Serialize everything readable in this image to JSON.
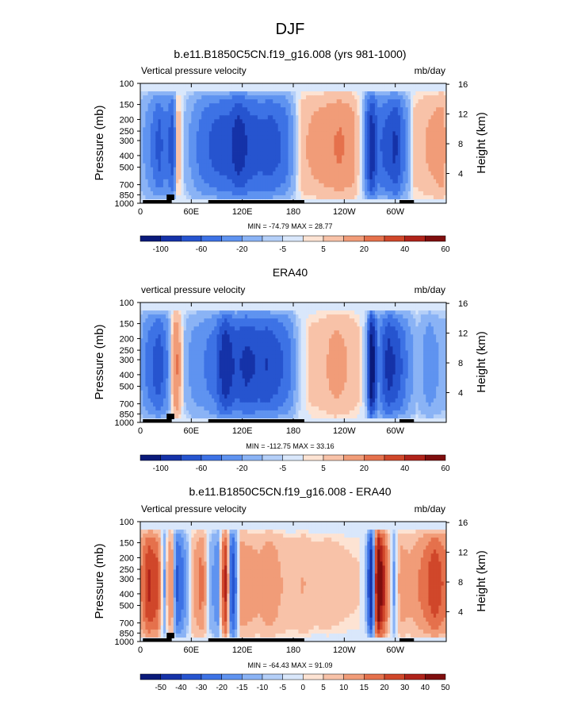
{
  "page": {
    "title": "DJF"
  },
  "colors": {
    "scale": [
      "#0a1a7a",
      "#1532a8",
      "#2654cf",
      "#3d72e5",
      "#5f93f0",
      "#8ab3f5",
      "#b4cff8",
      "#d9e7fb",
      "#fde3d3",
      "#f8c2a8",
      "#f19c78",
      "#e5714c",
      "#d0472a",
      "#b0231a",
      "#7f0e0e"
    ],
    "land_bar": "#000000"
  },
  "chart_data": [
    {
      "type": "heatmap",
      "title": "b.e11.B1850C5CN.f19_g16.008 (yrs 981-1000)",
      "left_label": "Vertical pressure velocity",
      "right_label": "mb/day",
      "ylabel": "Pressure (mb)",
      "y2label": "Height (km)",
      "x_ticks": [
        "0",
        "60E",
        "120E",
        "180",
        "120W",
        "60W"
      ],
      "y_ticks": [
        "100",
        "150",
        "200",
        "250",
        "300",
        "400",
        "500",
        "700",
        "850",
        "1000"
      ],
      "y2_ticks": [
        "16",
        "12",
        "8",
        "4"
      ],
      "stats": "MIN = -74.79  MAX = 28.77",
      "colorbar_labels": [
        "-100",
        "-60",
        "-20",
        "-5",
        "5",
        "20",
        "40",
        "60"
      ],
      "profile": [
        {
          "lon": 0,
          "v": -6
        },
        {
          "lon": 12,
          "v": -20
        },
        {
          "lon": 22,
          "v": -40
        },
        {
          "lon": 30,
          "v": -25
        },
        {
          "lon": 38,
          "v": -45
        },
        {
          "lon": 44,
          "v": 10
        },
        {
          "lon": 52,
          "v": -5
        },
        {
          "lon": 62,
          "v": -15
        },
        {
          "lon": 75,
          "v": -30
        },
        {
          "lon": 90,
          "v": -40
        },
        {
          "lon": 105,
          "v": -45
        },
        {
          "lon": 115,
          "v": -65
        },
        {
          "lon": 128,
          "v": -45
        },
        {
          "lon": 140,
          "v": -40
        },
        {
          "lon": 155,
          "v": -42
        },
        {
          "lon": 170,
          "v": -30
        },
        {
          "lon": 180,
          "v": -10
        },
        {
          "lon": 190,
          "v": 8
        },
        {
          "lon": 205,
          "v": 14
        },
        {
          "lon": 220,
          "v": 18
        },
        {
          "lon": 235,
          "v": 22
        },
        {
          "lon": 250,
          "v": 16
        },
        {
          "lon": 262,
          "v": -5
        },
        {
          "lon": 272,
          "v": -70
        },
        {
          "lon": 280,
          "v": -30
        },
        {
          "lon": 290,
          "v": -40
        },
        {
          "lon": 300,
          "v": -55
        },
        {
          "lon": 310,
          "v": -25
        },
        {
          "lon": 322,
          "v": 6
        },
        {
          "lon": 340,
          "v": 12
        },
        {
          "lon": 355,
          "v": 18
        },
        {
          "lon": 360,
          "v": 8
        }
      ]
    },
    {
      "type": "heatmap",
      "title": "ERA40",
      "left_label": "vertical pressure velocity",
      "right_label": "mb/day",
      "ylabel": "Pressure (mb)",
      "y2label": "Height (km)",
      "x_ticks": [
        "0",
        "60E",
        "120E",
        "180",
        "120W",
        "60W"
      ],
      "y_ticks": [
        "100",
        "150",
        "200",
        "250",
        "300",
        "400",
        "500",
        "700",
        "850",
        "1000"
      ],
      "y2_ticks": [
        "16",
        "12",
        "8",
        "4"
      ],
      "stats": "MIN = -112.75  MAX = 33.16",
      "colorbar_labels": [
        "-100",
        "-60",
        "-20",
        "-5",
        "5",
        "20",
        "40",
        "60"
      ],
      "profile": [
        {
          "lon": 0,
          "v": -10
        },
        {
          "lon": 12,
          "v": -30
        },
        {
          "lon": 22,
          "v": -45
        },
        {
          "lon": 32,
          "v": -20
        },
        {
          "lon": 42,
          "v": 25
        },
        {
          "lon": 52,
          "v": -5
        },
        {
          "lon": 62,
          "v": -15
        },
        {
          "lon": 75,
          "v": -20
        },
        {
          "lon": 88,
          "v": -30
        },
        {
          "lon": 100,
          "v": -70
        },
        {
          "lon": 112,
          "v": -45
        },
        {
          "lon": 125,
          "v": -55
        },
        {
          "lon": 138,
          "v": -48
        },
        {
          "lon": 150,
          "v": -50
        },
        {
          "lon": 162,
          "v": -40
        },
        {
          "lon": 175,
          "v": -25
        },
        {
          "lon": 185,
          "v": -5
        },
        {
          "lon": 200,
          "v": 6
        },
        {
          "lon": 215,
          "v": 8
        },
        {
          "lon": 230,
          "v": 15
        },
        {
          "lon": 245,
          "v": 10
        },
        {
          "lon": 258,
          "v": 5
        },
        {
          "lon": 266,
          "v": -8
        },
        {
          "lon": 272,
          "v": -100
        },
        {
          "lon": 280,
          "v": -20
        },
        {
          "lon": 292,
          "v": -60
        },
        {
          "lon": 302,
          "v": -45
        },
        {
          "lon": 314,
          "v": -20
        },
        {
          "lon": 326,
          "v": -5
        },
        {
          "lon": 340,
          "v": -18
        },
        {
          "lon": 352,
          "v": -10
        },
        {
          "lon": 360,
          "v": -8
        }
      ]
    },
    {
      "type": "heatmap",
      "title": "b.e11.B1850C5CN.f19_g16.008 - ERA40",
      "left_label": "Vertical pressure velocity",
      "right_label": "mb/day",
      "ylabel": "Pressure (mb)",
      "y2label": "Height (km)",
      "x_ticks": [
        "0",
        "60E",
        "120E",
        "180",
        "120W",
        "60W"
      ],
      "y_ticks": [
        "100",
        "150",
        "200",
        "250",
        "300",
        "400",
        "500",
        "700",
        "850",
        "1000"
      ],
      "y2_ticks": [
        "16",
        "12",
        "8",
        "4"
      ],
      "stats": "MIN = -64.43  MAX = 91.09",
      "colorbar_labels": [
        "-50",
        "-40",
        "-30",
        "-20",
        "-15",
        "-10",
        "-5",
        "0",
        "5",
        "10",
        "15",
        "20",
        "30",
        "40",
        "50"
      ],
      "profile": [
        {
          "lon": 0,
          "v": 12
        },
        {
          "lon": 10,
          "v": 40
        },
        {
          "lon": 20,
          "v": 30
        },
        {
          "lon": 28,
          "v": -10
        },
        {
          "lon": 36,
          "v": 20
        },
        {
          "lon": 44,
          "v": -30
        },
        {
          "lon": 52,
          "v": -12
        },
        {
          "lon": 62,
          "v": 8
        },
        {
          "lon": 72,
          "v": 20
        },
        {
          "lon": 82,
          "v": -5
        },
        {
          "lon": 92,
          "v": -15
        },
        {
          "lon": 100,
          "v": 45
        },
        {
          "lon": 108,
          "v": -40
        },
        {
          "lon": 118,
          "v": 15
        },
        {
          "lon": 128,
          "v": 12
        },
        {
          "lon": 140,
          "v": 10
        },
        {
          "lon": 152,
          "v": 15
        },
        {
          "lon": 165,
          "v": 8
        },
        {
          "lon": 178,
          "v": 6
        },
        {
          "lon": 192,
          "v": 8
        },
        {
          "lon": 205,
          "v": 5
        },
        {
          "lon": 220,
          "v": 6
        },
        {
          "lon": 240,
          "v": 4
        },
        {
          "lon": 258,
          "v": 3
        },
        {
          "lon": 266,
          "v": -5
        },
        {
          "lon": 272,
          "v": -55
        },
        {
          "lon": 280,
          "v": 80
        },
        {
          "lon": 290,
          "v": 20
        },
        {
          "lon": 298,
          "v": -10
        },
        {
          "lon": 306,
          "v": 12
        },
        {
          "lon": 318,
          "v": 10
        },
        {
          "lon": 332,
          "v": 18
        },
        {
          "lon": 346,
          "v": 35
        },
        {
          "lon": 360,
          "v": 20
        }
      ]
    }
  ]
}
